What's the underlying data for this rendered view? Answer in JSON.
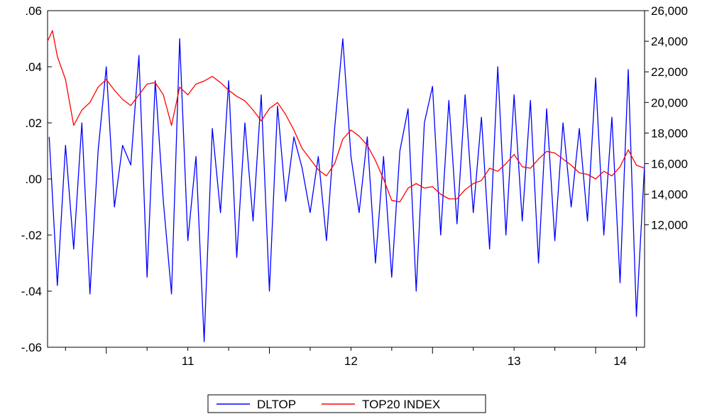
{
  "chart_data": {
    "type": "line",
    "title": "",
    "xlabel": "",
    "legend_position": "bottom-center",
    "grid": false,
    "x_ticks": [
      "11",
      "12",
      "13",
      "14"
    ],
    "x_tick_years": [
      2011,
      2012,
      2013,
      2014
    ],
    "x_range": [
      2010.64,
      2014.3
    ],
    "y_left": {
      "range": [
        -0.06,
        0.06
      ],
      "ticks": [
        ".06",
        ".04",
        ".02",
        ".00",
        "-.02",
        "-.04",
        "-.06"
      ],
      "tick_values": [
        0.06,
        0.04,
        0.02,
        0.0,
        -0.02,
        -0.04,
        -0.06
      ]
    },
    "y_right": {
      "range": [
        4000,
        26000
      ],
      "ticks": [
        "26,000",
        "24,000",
        "22,000",
        "20,000",
        "18,000",
        "16,000",
        "14,000",
        "12,000"
      ],
      "tick_values": [
        26000,
        24000,
        22000,
        20000,
        18000,
        16000,
        14000,
        12000
      ]
    },
    "series": [
      {
        "name": "DLTOP",
        "axis": "left",
        "color": "#0000ff",
        "x": [
          2010.65,
          2010.7,
          2010.75,
          2010.8,
          2010.85,
          2010.9,
          2010.95,
          2011.0,
          2011.05,
          2011.1,
          2011.15,
          2011.2,
          2011.25,
          2011.3,
          2011.35,
          2011.4,
          2011.45,
          2011.5,
          2011.55,
          2011.6,
          2011.65,
          2011.7,
          2011.75,
          2011.8,
          2011.85,
          2011.9,
          2011.95,
          2012.0,
          2012.05,
          2012.1,
          2012.15,
          2012.2,
          2012.25,
          2012.3,
          2012.35,
          2012.4,
          2012.45,
          2012.5,
          2012.55,
          2012.6,
          2012.65,
          2012.7,
          2012.75,
          2012.8,
          2012.85,
          2012.9,
          2012.95,
          2013.0,
          2013.05,
          2013.1,
          2013.15,
          2013.2,
          2013.25,
          2013.3,
          2013.35,
          2013.4,
          2013.45,
          2013.5,
          2013.55,
          2013.6,
          2013.65,
          2013.7,
          2013.75,
          2013.8,
          2013.85,
          2013.9,
          2013.95,
          2014.0,
          2014.05,
          2014.1,
          2014.15,
          2014.2,
          2014.25,
          2014.3
        ],
        "values": [
          0.015,
          -0.038,
          0.012,
          -0.025,
          0.02,
          -0.041,
          0.01,
          0.04,
          -0.01,
          0.012,
          0.005,
          0.044,
          -0.035,
          0.035,
          -0.008,
          -0.041,
          0.05,
          -0.022,
          0.008,
          -0.058,
          0.018,
          -0.012,
          0.035,
          -0.028,
          0.02,
          -0.015,
          0.03,
          -0.04,
          0.026,
          -0.008,
          0.015,
          0.004,
          -0.012,
          0.008,
          -0.022,
          0.018,
          0.05,
          0.008,
          -0.012,
          0.015,
          -0.03,
          0.008,
          -0.035,
          0.01,
          0.025,
          -0.04,
          0.02,
          0.033,
          -0.02,
          0.028,
          -0.016,
          0.03,
          -0.012,
          0.022,
          -0.025,
          0.04,
          -0.02,
          0.03,
          -0.015,
          0.028,
          -0.03,
          0.025,
          -0.022,
          0.02,
          -0.01,
          0.018,
          -0.015,
          0.036,
          -0.02,
          0.022,
          -0.037,
          0.039,
          -0.049,
          0.005
        ]
      },
      {
        "name": "TOP20 INDEX",
        "axis": "right",
        "color": "#ff0000",
        "x": [
          2010.64,
          2010.67,
          2010.7,
          2010.75,
          2010.8,
          2010.85,
          2010.9,
          2010.95,
          2011.0,
          2011.05,
          2011.1,
          2011.15,
          2011.2,
          2011.25,
          2011.3,
          2011.35,
          2011.4,
          2011.45,
          2011.5,
          2011.55,
          2011.6,
          2011.65,
          2011.7,
          2011.75,
          2011.8,
          2011.85,
          2011.9,
          2011.95,
          2012.0,
          2012.05,
          2012.1,
          2012.15,
          2012.2,
          2012.25,
          2012.3,
          2012.35,
          2012.4,
          2012.45,
          2012.5,
          2012.55,
          2012.6,
          2012.65,
          2012.7,
          2012.75,
          2012.8,
          2012.85,
          2012.9,
          2012.95,
          2013.0,
          2013.05,
          2013.1,
          2013.15,
          2013.2,
          2013.25,
          2013.3,
          2013.35,
          2013.4,
          2013.45,
          2013.5,
          2013.55,
          2013.6,
          2013.65,
          2013.7,
          2013.75,
          2013.8,
          2013.85,
          2013.9,
          2013.95,
          2014.0,
          2014.05,
          2014.1,
          2014.15,
          2014.2,
          2014.25,
          2014.3
        ],
        "values": [
          24000,
          24700,
          23000,
          21500,
          18500,
          19500,
          20000,
          21000,
          21500,
          20800,
          20200,
          19800,
          20500,
          21200,
          21300,
          20500,
          18500,
          21000,
          20500,
          21200,
          21400,
          21700,
          21300,
          20800,
          20400,
          20100,
          19500,
          18800,
          19600,
          20000,
          19200,
          18200,
          17000,
          16300,
          15600,
          15200,
          16000,
          17600,
          18200,
          17800,
          17200,
          16200,
          15000,
          13600,
          13500,
          14400,
          14700,
          14400,
          14500,
          14000,
          13700,
          13700,
          14300,
          14700,
          14900,
          15700,
          15500,
          16000,
          16600,
          15800,
          15700,
          16300,
          16800,
          16700,
          16300,
          15900,
          15400,
          15300,
          15000,
          15500,
          15200,
          15800,
          16900,
          15900,
          15700
        ]
      }
    ]
  }
}
